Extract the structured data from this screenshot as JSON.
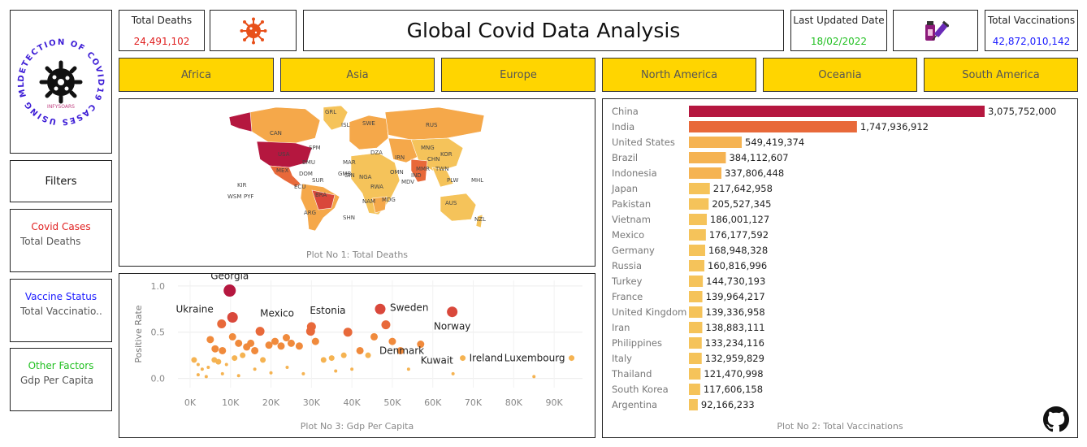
{
  "logo": {
    "ring_text": "DETECTION OF COVID19 CASES USING ML & DL",
    "sub_text": "INFYSOARS"
  },
  "kpis": {
    "total_deaths_label": "Total Deaths",
    "total_deaths_value": "24,491,102",
    "title": "Global Covid Data Analysis",
    "last_updated_label": "Last Updated Date",
    "last_updated_value": "18/02/2022",
    "total_vacc_label": "Total Vaccinations",
    "total_vacc_value": "42,872,010,142"
  },
  "regions": [
    "Africa",
    "Asia",
    "Europe",
    "North America",
    "Oceania",
    "South America"
  ],
  "filters": {
    "title": "Filters",
    "groups": [
      {
        "title": "Covid Cases",
        "value": "Total Deaths",
        "color": "#e02020"
      },
      {
        "title": "Vaccine Status",
        "value": "Total Vaccinatio..",
        "color": "#1a1aff"
      },
      {
        "title": "Other Factors",
        "value": "Gdp Per Capita",
        "color": "#22c022"
      }
    ]
  },
  "colors": {
    "region_bg": "#ffd500",
    "deaths_red": "#e02020",
    "updated_green": "#22c022",
    "vacc_blue": "#1a1aff",
    "virus_orange": "#e8501a",
    "map_dark": "#b5173f",
    "map_mid": "#e8693a",
    "map_light": "#f5c35a"
  },
  "map": {
    "caption": "Plot No 1: Total Deaths",
    "country_labels": [
      "GRL",
      "ISL",
      "SWE",
      "RUS",
      "CAN",
      "USA",
      "SPM",
      "BMU",
      "MEX",
      "DOM",
      "ECU",
      "SUR",
      "BRA",
      "ARG",
      "KIR",
      "WSM",
      "PYF",
      "MAR",
      "GMB",
      "GIN",
      "NGA",
      "RWA",
      "NAM",
      "MDG",
      "MDV",
      "OMN",
      "MMR",
      "TWN",
      "PLW",
      "MHL",
      "AUS",
      "SHN",
      "NZL",
      "MNG",
      "KOR",
      "DZA",
      "CHN",
      "IRN",
      "IND"
    ]
  },
  "scatter": {
    "caption": "Plot No 3: Gdp Per Capita",
    "labels": [
      "Georgia",
      "Ukraine",
      "Mexico",
      "Estonia",
      "Sweden",
      "Norway",
      "Denmark",
      "Kuwait",
      "Ireland",
      "Luxembourg"
    ]
  },
  "chart_data": [
    {
      "type": "bar",
      "title": "Plot No 2: Total Vaccinations",
      "categories": [
        "China",
        "India",
        "United States",
        "Brazil",
        "Indonesia",
        "Japan",
        "Pakistan",
        "Vietnam",
        "Mexico",
        "Germany",
        "Russia",
        "Turkey",
        "France",
        "United Kingdom",
        "Iran",
        "Philippines",
        "Italy",
        "Thailand",
        "South Korea",
        "Argentina"
      ],
      "values": [
        3075752000,
        1747936912,
        549419374,
        384112607,
        337806448,
        217642958,
        205527345,
        186001127,
        176177592,
        168948328,
        160816996,
        144730193,
        139964217,
        139336958,
        138883111,
        133234116,
        132959829,
        121470998,
        117606158,
        92166233
      ],
      "labels": [
        "3,075,752,000",
        "1,747,936,912",
        "549,419,374",
        "384,112,607",
        "337,806,448",
        "217,642,958",
        "205,527,345",
        "186,001,127",
        "176,177,592",
        "168,948,328",
        "160,816,996",
        "144,730,193",
        "139,964,217",
        "139,336,958",
        "138,883,111",
        "133,234,116",
        "132,959,829",
        "121,470,998",
        "117,606,158",
        "92,166,233"
      ],
      "orientation": "horizontal"
    },
    {
      "type": "scatter",
      "title": "Plot No 3: Gdp Per Capita",
      "xlabel": "",
      "ylabel": "Positive Rate",
      "xlim": [
        -3000,
        97000
      ],
      "ylim": [
        -0.1,
        1.06
      ],
      "xticks": [
        "0K",
        "10K",
        "20K",
        "30K",
        "40K",
        "50K",
        "60K",
        "70K",
        "80K",
        "90K"
      ],
      "yticks": [
        "0.0",
        "0.5",
        "1.0"
      ],
      "points": [
        {
          "x": 9800,
          "y": 0.95,
          "label": "Georgia"
        },
        {
          "x": 7800,
          "y": 0.59,
          "label": "Ukraine"
        },
        {
          "x": 17300,
          "y": 0.51,
          "label": "Mexico"
        },
        {
          "x": 30000,
          "y": 0.56,
          "label": "Estonia"
        },
        {
          "x": 47000,
          "y": 0.75,
          "label": "Sweden"
        },
        {
          "x": 64800,
          "y": 0.72,
          "label": "Norway"
        },
        {
          "x": 48400,
          "y": 0.58,
          "label": "Denmark"
        },
        {
          "x": 57000,
          "y": 0.37,
          "label": "Kuwait"
        },
        {
          "x": 67400,
          "y": 0.22,
          "label": "Ireland"
        },
        {
          "x": 94300,
          "y": 0.22,
          "label": "Luxembourg"
        },
        {
          "x": 10500,
          "y": 0.66
        },
        {
          "x": 5000,
          "y": 0.42
        },
        {
          "x": 6200,
          "y": 0.32
        },
        {
          "x": 8000,
          "y": 0.3
        },
        {
          "x": 10500,
          "y": 0.45
        },
        {
          "x": 12000,
          "y": 0.38
        },
        {
          "x": 14000,
          "y": 0.34
        },
        {
          "x": 15000,
          "y": 0.38
        },
        {
          "x": 16000,
          "y": 0.3
        },
        {
          "x": 19500,
          "y": 0.36
        },
        {
          "x": 21000,
          "y": 0.4
        },
        {
          "x": 22500,
          "y": 0.35
        },
        {
          "x": 23800,
          "y": 0.44
        },
        {
          "x": 25000,
          "y": 0.38
        },
        {
          "x": 27000,
          "y": 0.35
        },
        {
          "x": 29800,
          "y": 0.51
        },
        {
          "x": 31000,
          "y": 0.4
        },
        {
          "x": 33000,
          "y": 0.2
        },
        {
          "x": 35000,
          "y": 0.22
        },
        {
          "x": 38000,
          "y": 0.25
        },
        {
          "x": 39000,
          "y": 0.5
        },
        {
          "x": 42000,
          "y": 0.3
        },
        {
          "x": 44000,
          "y": 0.25
        },
        {
          "x": 45500,
          "y": 0.45
        },
        {
          "x": 50000,
          "y": 0.4
        },
        {
          "x": 52000,
          "y": 0.3
        },
        {
          "x": 1000,
          "y": 0.2
        },
        {
          "x": 2000,
          "y": 0.15
        },
        {
          "x": 3000,
          "y": 0.1
        },
        {
          "x": 4500,
          "y": 0.12
        },
        {
          "x": 6000,
          "y": 0.2
        },
        {
          "x": 7000,
          "y": 0.18
        },
        {
          "x": 9000,
          "y": 0.15
        },
        {
          "x": 11000,
          "y": 0.22
        },
        {
          "x": 13000,
          "y": 0.25
        },
        {
          "x": 18000,
          "y": 0.2
        },
        {
          "x": 24000,
          "y": 0.12
        },
        {
          "x": 28000,
          "y": 0.05
        },
        {
          "x": 36000,
          "y": 0.08
        },
        {
          "x": 40000,
          "y": 0.1
        },
        {
          "x": 54000,
          "y": 0.1
        },
        {
          "x": 65000,
          "y": 0.05
        },
        {
          "x": 85000,
          "y": 0.02
        },
        {
          "x": 2000,
          "y": 0.04
        },
        {
          "x": 4000,
          "y": 0.02
        },
        {
          "x": 8000,
          "y": 0.05
        },
        {
          "x": 12000,
          "y": 0.03
        },
        {
          "x": 20000,
          "y": 0.06
        },
        {
          "x": 16000,
          "y": 0.1
        }
      ]
    }
  ]
}
